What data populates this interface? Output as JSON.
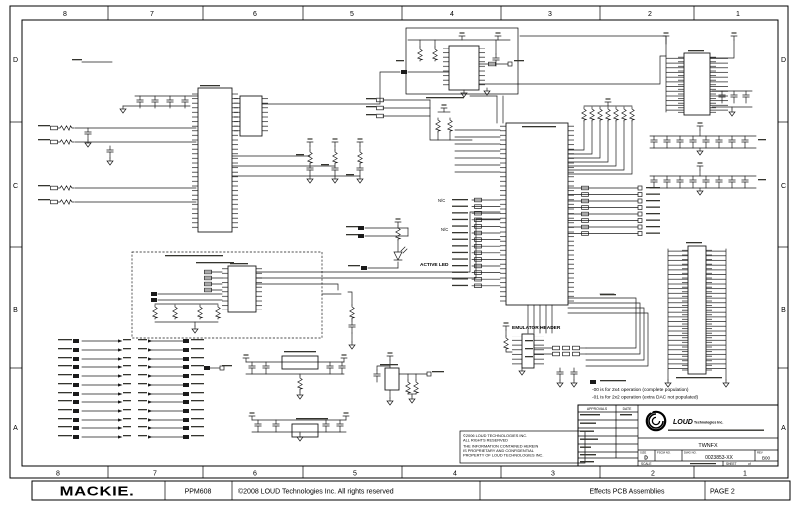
{
  "sheet": {
    "zones_top": [
      "8",
      "7",
      "6",
      "5",
      "4",
      "3",
      "2",
      "1"
    ],
    "zones_bottom": [
      "8",
      "7",
      "6",
      "5",
      "4",
      "3",
      "2",
      "1"
    ],
    "zones_left": [
      "D",
      "C",
      "B",
      "A"
    ],
    "zones_right": [
      "D",
      "C",
      "B",
      "A"
    ]
  },
  "labels": {
    "active_led": "ACTIVE LED",
    "emulator_header": "EMULATOR HEADER",
    "nc1": "N/C",
    "nc2": "N/C"
  },
  "notes": {
    "line1": "-00 is for 2x4 operation (complete population)",
    "line2": "-01 is for 2x2 operation (extra DAC not populated)"
  },
  "copyright_block": {
    "line1": "©2006 LOUD TECHNOLOGIES INC.",
    "line2": "ALL RIGHTS RESERVED",
    "line3": "THE INFORMATION CONTAINED HEREIN",
    "line4": "IS PROPRIETARY AND CONFIDENTIAL",
    "line5": "PROPERTY OF LOUD TECHNOLOGIES INC."
  },
  "title_block": {
    "approvals_label": "APPROVALS",
    "date_label": "DATE",
    "company_logo_text": "LOUD",
    "company_name": "Technologies Inc.",
    "product": "TWNFX",
    "size_label": "SIZE",
    "size_value": "D",
    "fscm_label": "FSCM NO.",
    "dwg_label": "DWG NO.",
    "dwg_number": "0023853-XX",
    "rev_label": "REV",
    "rev_value": "B00",
    "scale_label": "SCALE",
    "sheet_label": "SHEET",
    "of_label": "of"
  },
  "footer": {
    "brand": "MACKIE.",
    "model": "PPM608",
    "copyright": "©2008 LOUD Technologies Inc. All rights reserved",
    "assembly": "Effects PCB Assemblies",
    "page": "PAGE 2"
  },
  "colors": {
    "ink": "#1a1a1a",
    "paper": "#ffffff"
  }
}
